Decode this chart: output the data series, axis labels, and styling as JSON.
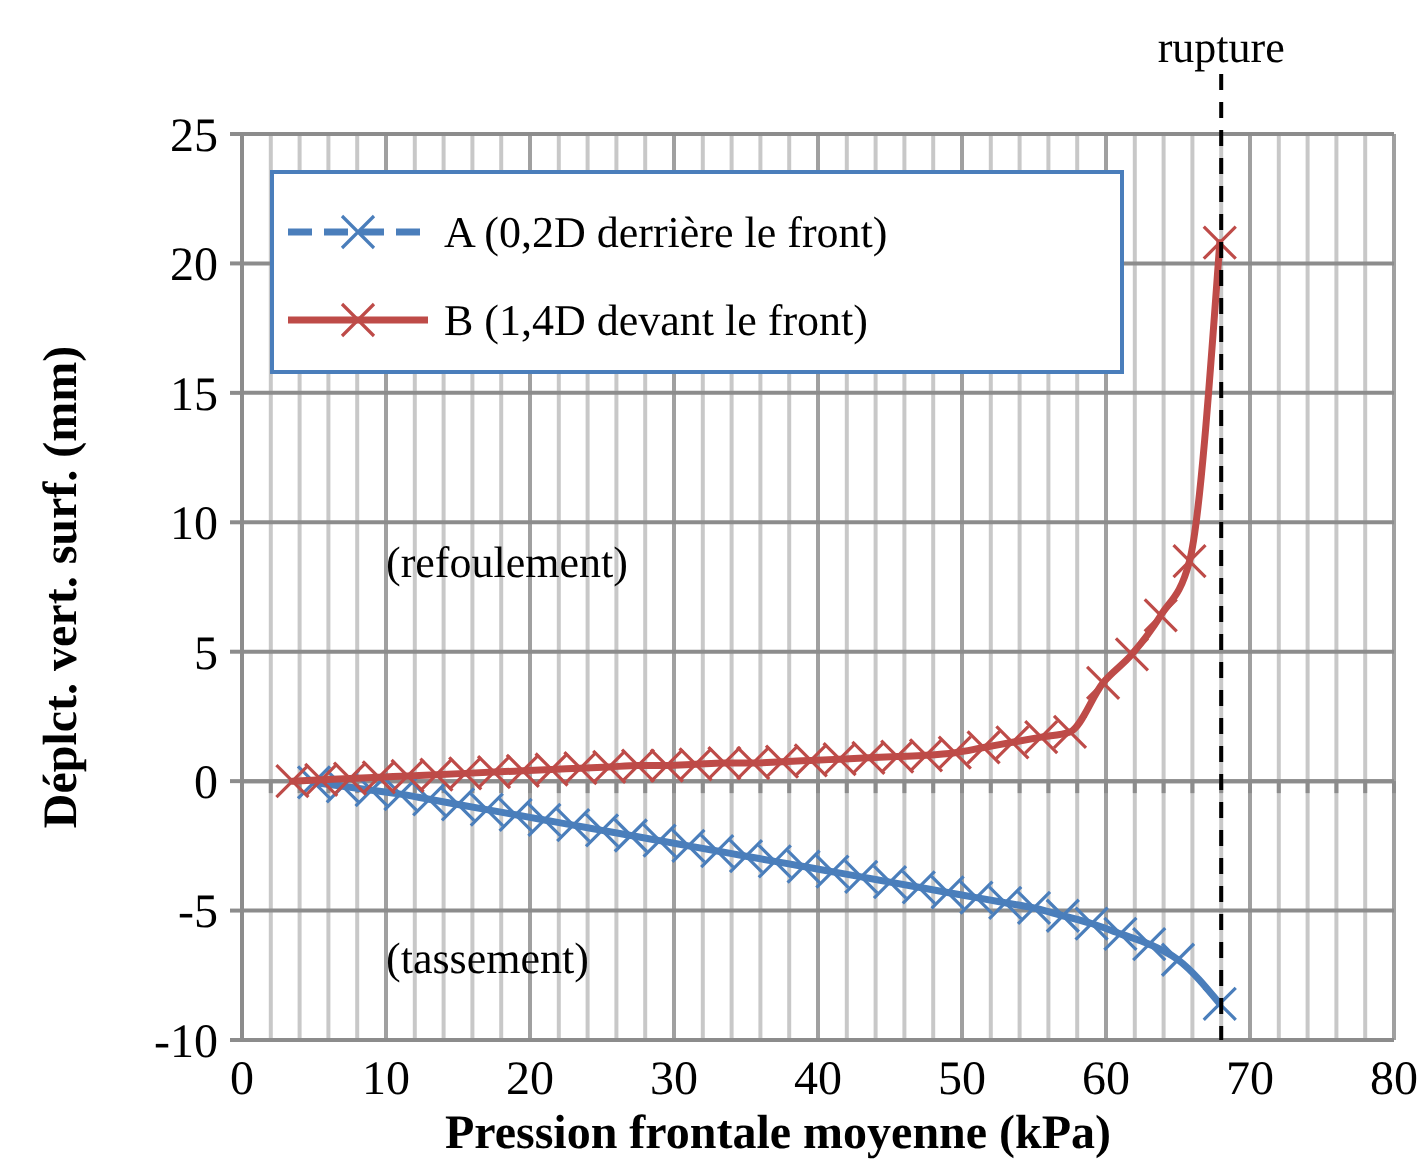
{
  "chart_data": {
    "type": "line",
    "xlabel": "Pression frontale moyenne (kPa)",
    "ylabel": "Déplct. vert. surf. (mm)",
    "xlim": [
      0,
      80
    ],
    "ylim": [
      -10,
      25
    ],
    "xticks": [
      0,
      {
        "value": 2,
        "label": null
      },
      {
        "value": 4,
        "label": null
      },
      {
        "value": 6,
        "label": null
      },
      {
        "value": 8,
        "label": null
      },
      10,
      {
        "value": 12,
        "label": null
      },
      {
        "value": 14,
        "label": null
      },
      {
        "value": 16,
        "label": null
      },
      {
        "value": 18,
        "label": null
      },
      20,
      {
        "value": 22,
        "label": null
      },
      {
        "value": 24,
        "label": null
      },
      {
        "value": 26,
        "label": null
      },
      {
        "value": 28,
        "label": null
      },
      30,
      {
        "value": 32,
        "label": null
      },
      {
        "value": 34,
        "label": null
      },
      {
        "value": 36,
        "label": null
      },
      {
        "value": 38,
        "label": null
      },
      40,
      {
        "value": 42,
        "label": null
      },
      {
        "value": 44,
        "label": null
      },
      {
        "value": 46,
        "label": null
      },
      {
        "value": 48,
        "label": null
      },
      50,
      {
        "value": 52,
        "label": null
      },
      {
        "value": 54,
        "label": null
      },
      {
        "value": 56,
        "label": null
      },
      {
        "value": 58,
        "label": null
      },
      60,
      {
        "value": 62,
        "label": null
      },
      {
        "value": 64,
        "label": null
      },
      {
        "value": 66,
        "label": null
      },
      {
        "value": 68,
        "label": null
      },
      70,
      {
        "value": 72,
        "label": null
      },
      {
        "value": 74,
        "label": null
      },
      {
        "value": 76,
        "label": null
      },
      {
        "value": 78,
        "label": null
      },
      80
    ],
    "yticks": [
      -10,
      -5,
      0,
      5,
      10,
      15,
      20,
      25
    ],
    "grid": true,
    "legend": "top left",
    "line_style": "solid",
    "ref_lines": [
      {
        "axis": "x",
        "value": 68,
        "label": "rupture",
        "color": "#000000",
        "line_style": "dashed"
      }
    ],
    "annotations": [
      "(refoulement)",
      "(tassement)"
    ],
    "series": [
      {
        "name": "A (0,2D derrière le front)",
        "color": "#4a7ebb",
        "marker": "cross",
        "x": [
          5,
          7,
          9,
          11,
          13,
          15,
          17,
          19,
          21,
          23,
          25,
          27,
          29,
          31,
          33,
          35,
          37,
          39,
          41,
          43,
          45,
          47,
          49,
          51,
          53,
          55,
          57,
          59,
          61,
          63,
          65,
          67.9
        ],
        "values": [
          -0.05,
          -0.2,
          -0.35,
          -0.5,
          -0.7,
          -0.9,
          -1.1,
          -1.3,
          -1.5,
          -1.7,
          -1.9,
          -2.1,
          -2.3,
          -2.5,
          -2.7,
          -2.9,
          -3.1,
          -3.3,
          -3.5,
          -3.7,
          -3.9,
          -4.1,
          -4.3,
          -4.5,
          -4.7,
          -4.9,
          -5.2,
          -5.5,
          -5.9,
          -6.3,
          -6.9,
          -8.6
        ]
      },
      {
        "name": "B (1,4D devant le front)",
        "color": "#be4b48",
        "marker": "cross",
        "x": [
          3.5,
          5.5,
          7.5,
          9.5,
          11.5,
          13.5,
          15.5,
          17.5,
          19.5,
          21.5,
          23.5,
          25.5,
          27.5,
          29.5,
          31.5,
          33.5,
          35.5,
          37.5,
          39.5,
          41.5,
          43.5,
          45.5,
          47.5,
          49.5,
          51.5,
          53.5,
          55.5,
          57.5,
          59.8,
          61.8,
          63.8,
          65.8,
          67.9
        ],
        "values": [
          0,
          0.05,
          0.1,
          0.15,
          0.2,
          0.25,
          0.3,
          0.35,
          0.4,
          0.45,
          0.5,
          0.55,
          0.6,
          0.6,
          0.65,
          0.7,
          0.7,
          0.75,
          0.8,
          0.85,
          0.9,
          0.95,
          1.0,
          1.1,
          1.3,
          1.5,
          1.7,
          1.9,
          3.8,
          4.9,
          6.4,
          8.5,
          20.8
        ]
      }
    ]
  }
}
